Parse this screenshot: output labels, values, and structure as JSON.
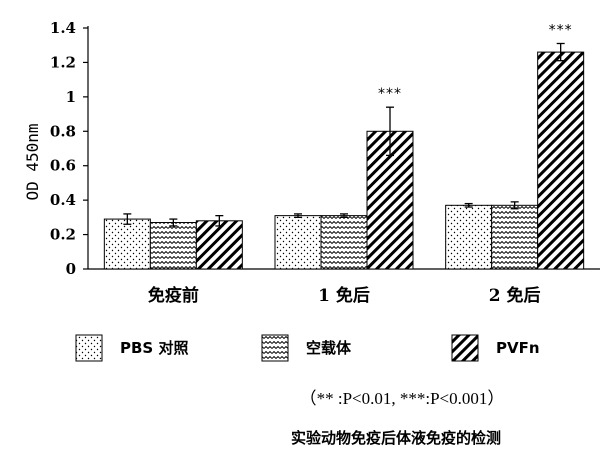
{
  "chart_data": {
    "type": "bar",
    "title": "实验动物免疫后体液免疫的检测",
    "ylabel": "OD 450nm",
    "xlabel": "",
    "ylim": [
      0,
      1.4
    ],
    "yticks": [
      "0",
      "0.2",
      "0.4",
      "0.6",
      "0.8",
      "1",
      "1.2",
      "1.4"
    ],
    "categories": [
      "免疫前",
      "1 免后",
      "2 免后"
    ],
    "series": [
      {
        "name": "PBS 对照",
        "values": [
          0.29,
          0.31,
          0.37
        ],
        "errors": [
          0.03,
          0.01,
          0.01
        ],
        "pattern": "dots"
      },
      {
        "name": "空载体",
        "values": [
          0.27,
          0.31,
          0.37
        ],
        "errors": [
          0.02,
          0.01,
          0.02
        ],
        "pattern": "zigzag"
      },
      {
        "name": "PVFn",
        "values": [
          0.28,
          0.8,
          1.26
        ],
        "errors": [
          0.03,
          0.14,
          0.05
        ],
        "pattern": "diagonal"
      }
    ],
    "annotations": [
      {
        "category": 1,
        "series": 2,
        "text": "***"
      },
      {
        "category": 2,
        "series": 2,
        "text": "***"
      }
    ],
    "significance_note": "（** :P<0.01,    ***:P<0.001）",
    "legend_position": "bottom",
    "grid": false
  }
}
